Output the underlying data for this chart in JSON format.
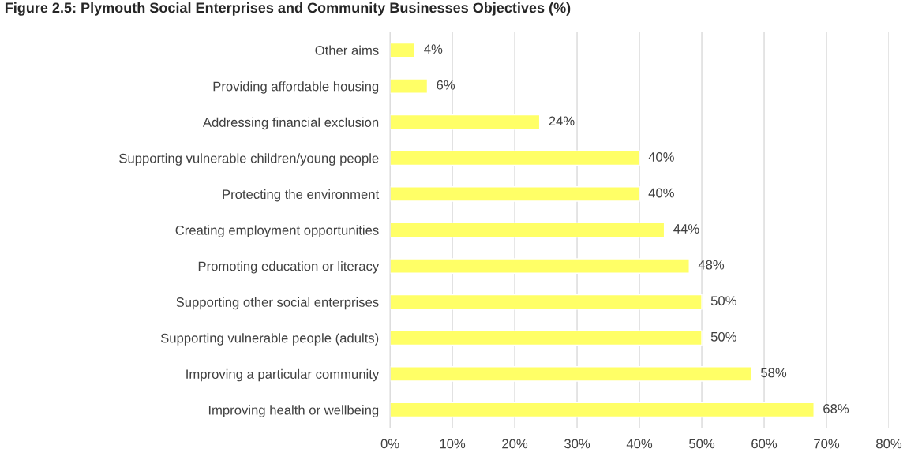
{
  "chart_data": {
    "type": "bar",
    "orientation": "horizontal",
    "title": "Figure 2.5: Plymouth Social Enterprises and Community Businesses Objectives (%)",
    "categories": [
      "Other aims",
      "Providing affordable housing",
      "Addressing financial exclusion",
      "Supporting vulnerable children/young people",
      "Protecting the environment",
      "Creating employment opportunities",
      "Promoting education or literacy",
      "Supporting other social enterprises",
      "Supporting vulnerable people (adults)",
      "Improving a particular community",
      "Improving health or wellbeing"
    ],
    "values": [
      4,
      6,
      24,
      40,
      40,
      44,
      48,
      50,
      50,
      58,
      68
    ],
    "value_labels": [
      "4%",
      "6%",
      "24%",
      "40%",
      "40%",
      "44%",
      "48%",
      "50%",
      "50%",
      "58%",
      "68%"
    ],
    "color": "#ffff66",
    "xlim": [
      0,
      80
    ],
    "xticks": [
      {
        "value": 0,
        "label": "0%"
      },
      {
        "value": 10,
        "label": "10%"
      },
      {
        "value": 20,
        "label": "20%"
      },
      {
        "value": 30,
        "label": "30%"
      },
      {
        "value": 40,
        "label": "40%"
      },
      {
        "value": 50,
        "label": "50%"
      },
      {
        "value": 60,
        "label": "60%"
      },
      {
        "value": 70,
        "label": "70%"
      },
      {
        "value": 80,
        "label": "80%"
      }
    ],
    "grid": "x"
  }
}
